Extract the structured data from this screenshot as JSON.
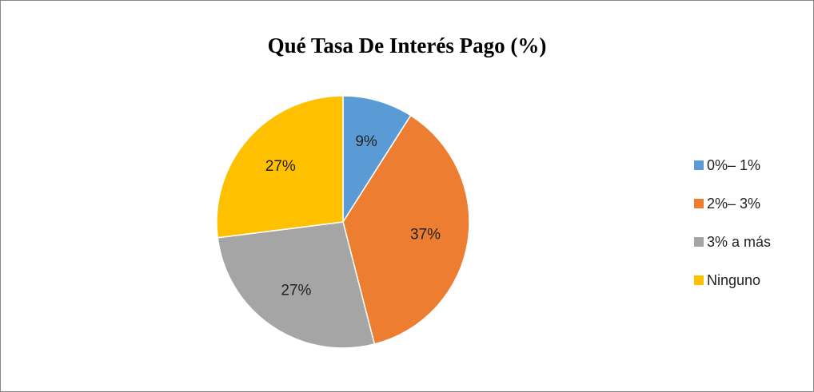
{
  "chart_data": {
    "type": "pie",
    "title": "Qué Tasa De Interés Pago (%)",
    "categories": [
      "0%– 1%",
      "2%– 3%",
      "3% a más",
      "Ninguno"
    ],
    "values": [
      9,
      37,
      27,
      27
    ],
    "value_labels": [
      "9%",
      "37%",
      "27%",
      "27%"
    ],
    "colors": [
      "#5b9bd5",
      "#ed7d31",
      "#a5a5a5",
      "#ffc000"
    ],
    "legend": "right"
  }
}
